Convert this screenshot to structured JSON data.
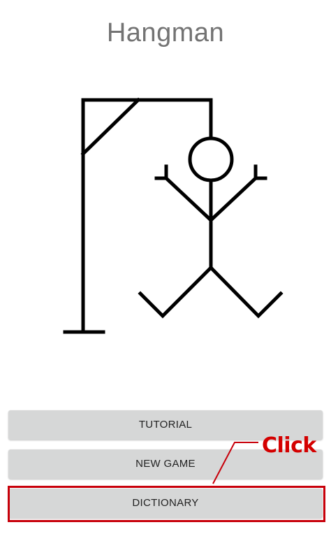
{
  "app": {
    "title": "Hangman"
  },
  "buttons": {
    "tutorial": "TUTORIAL",
    "new_game": "NEW GAME",
    "dictionary": "DICTIONARY"
  },
  "annotation": {
    "label": "Click",
    "color": "#d40000"
  },
  "colors": {
    "title_text": "#737373",
    "button_bg": "#d6d7d7",
    "highlight_border": "#c8000a"
  }
}
